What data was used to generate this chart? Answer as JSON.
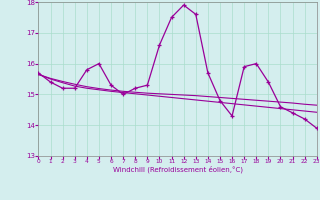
{
  "xlabel": "Windchill (Refroidissement éolien,°C)",
  "bg_color": "#d4eeee",
  "line_color": "#990099",
  "grid_color": "#aaddcc",
  "x_values": [
    0,
    1,
    2,
    3,
    4,
    5,
    6,
    7,
    8,
    9,
    10,
    11,
    12,
    13,
    14,
    15,
    16,
    17,
    18,
    19,
    20,
    21,
    22,
    23
  ],
  "y_main": [
    15.7,
    15.4,
    15.2,
    15.2,
    15.8,
    16.0,
    15.3,
    15.0,
    15.2,
    15.3,
    16.6,
    17.5,
    17.9,
    17.6,
    15.7,
    14.8,
    14.3,
    15.9,
    16.0,
    15.4,
    14.6,
    14.4,
    14.2,
    13.9
  ],
  "y_line1": [
    15.65,
    15.5,
    15.38,
    15.27,
    15.2,
    15.15,
    15.1,
    15.06,
    15.02,
    14.98,
    14.94,
    14.9,
    14.86,
    14.82,
    14.78,
    14.74,
    14.7,
    14.66,
    14.62,
    14.58,
    14.54,
    14.5,
    14.46,
    14.42
  ],
  "y_line2": [
    15.65,
    15.52,
    15.42,
    15.33,
    15.25,
    15.19,
    15.14,
    15.1,
    15.07,
    15.04,
    15.02,
    15.0,
    14.98,
    14.96,
    14.93,
    14.9,
    14.87,
    14.84,
    14.81,
    14.78,
    14.75,
    14.72,
    14.68,
    14.65
  ],
  "ylim": [
    13.0,
    18.0
  ],
  "yticks": [
    13,
    14,
    15,
    16,
    17,
    18
  ],
  "xlim": [
    0,
    23
  ]
}
